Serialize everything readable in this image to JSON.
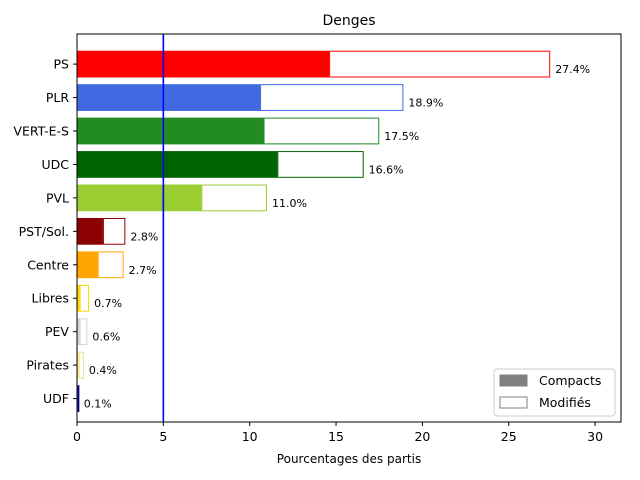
{
  "chart_data": {
    "type": "bar",
    "orientation": "horizontal",
    "title": "Denges",
    "xlabel": "Pourcentages des partis",
    "ylabel": "",
    "xlim": [
      0,
      31.5
    ],
    "xticks": [
      0,
      5,
      10,
      15,
      20,
      25,
      30
    ],
    "grid": false,
    "legend_position": "bottom-right",
    "legend": [
      {
        "label": "Compacts",
        "style": "filled",
        "color": "#808080"
      },
      {
        "label": "Modifiés",
        "style": "outline",
        "color": "#808080"
      }
    ],
    "reference_line": {
      "x": 5,
      "color": "#0000ff"
    },
    "categories": [
      "PS",
      "PLR",
      "VERT-E-S",
      "UDC",
      "PVL",
      "PST/Sol.",
      "Centre",
      "Libres",
      "PEV",
      "Pirates",
      "UDF"
    ],
    "series": [
      {
        "name": "Compacts",
        "values": [
          14.6,
          10.6,
          10.8,
          11.6,
          7.2,
          1.5,
          1.2,
          0.15,
          0.15,
          0.1,
          0.05
        ]
      },
      {
        "name": "Modifiés",
        "values": [
          12.8,
          8.3,
          6.7,
          5.0,
          3.8,
          1.3,
          1.5,
          0.55,
          0.45,
          0.3,
          0.05
        ]
      }
    ],
    "totals": [
      27.4,
      18.9,
      17.5,
      16.6,
      11.0,
      2.8,
      2.7,
      0.7,
      0.6,
      0.4,
      0.1
    ],
    "value_labels": [
      "27.4%",
      "18.9%",
      "17.5%",
      "16.6%",
      "11.0%",
      "2.8%",
      "2.7%",
      "0.7%",
      "0.6%",
      "0.4%",
      "0.1%"
    ],
    "colors": [
      "#ff0000",
      "#4169e1",
      "#228b22",
      "#006400",
      "#9acd32",
      "#8b0000",
      "#ffa500",
      "#ffd700",
      "#d3d3d3",
      "#f0e68c",
      "#00008b"
    ]
  }
}
